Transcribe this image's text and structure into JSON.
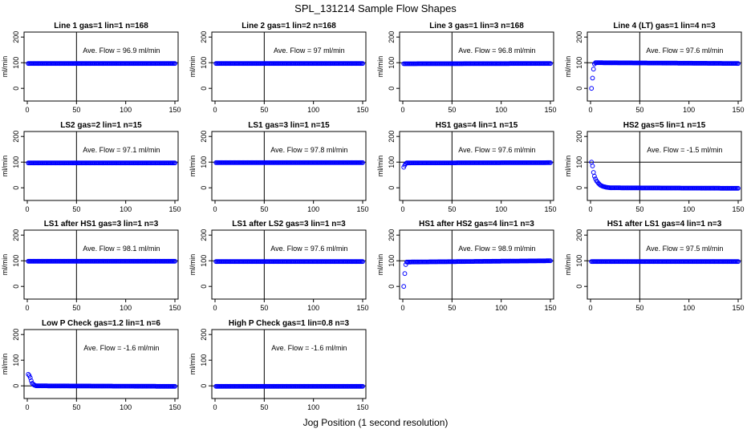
{
  "figure": {
    "title": "SPL_131214  Sample Flow Shapes",
    "xlabel": "Jog Position (1 second resolution)"
  },
  "chart_data": [
    {
      "type": "scatter",
      "title": "Line 1 gas=1 lin=1 n=168",
      "ylabel": "ml/min",
      "xlim": [
        0,
        150
      ],
      "ylim": [
        -40,
        210
      ],
      "xticks": [
        0,
        50,
        100,
        150
      ],
      "yticks": [
        0,
        100,
        200
      ],
      "hline": 100,
      "vline": 50,
      "annotation": "Ave. Flow =  96.9  ml/min",
      "series": [
        {
          "x": [
            1,
            150
          ],
          "y": [
            97,
            97
          ],
          "note_shape": "flat"
        }
      ]
    },
    {
      "type": "scatter",
      "title": "Line 2 gas=1 lin=2 n=168",
      "ylabel": "ml/min",
      "xlim": [
        0,
        150
      ],
      "ylim": [
        -40,
        210
      ],
      "xticks": [
        0,
        50,
        100,
        150
      ],
      "yticks": [
        0,
        100,
        200
      ],
      "hline": 100,
      "vline": 50,
      "annotation": "Ave. Flow =  97  ml/min",
      "series": [
        {
          "x": [
            1,
            150
          ],
          "y": [
            97,
            97
          ]
        }
      ]
    },
    {
      "type": "scatter",
      "title": "Line 3 gas=1 lin=3 n=168",
      "ylabel": "ml/min",
      "xlim": [
        0,
        150
      ],
      "ylim": [
        -40,
        210
      ],
      "xticks": [
        0,
        50,
        100,
        150
      ],
      "yticks": [
        0,
        100,
        200
      ],
      "hline": 100,
      "vline": 50,
      "annotation": "Ave. Flow =  96.8  ml/min",
      "series": [
        {
          "x": [
            1,
            150
          ],
          "y": [
            96,
            97
          ]
        }
      ]
    },
    {
      "type": "scatter",
      "title": "Line 4 (LT) gas=1 lin=4 n=3",
      "ylabel": "ml/min",
      "xlim": [
        0,
        150
      ],
      "ylim": [
        -40,
        210
      ],
      "xticks": [
        0,
        50,
        100,
        150
      ],
      "yticks": [
        0,
        100,
        200
      ],
      "hline": 100,
      "vline": 50,
      "annotation": "Ave. Flow =  97.6  ml/min",
      "series": [
        {
          "x": [
            1,
            2,
            3,
            4,
            5,
            150
          ],
          "y": [
            0,
            40,
            75,
            95,
            100,
            97
          ]
        }
      ]
    },
    {
      "type": "scatter",
      "title": "LS2 gas=2 lin=1 n=15",
      "ylabel": "ml/min",
      "xlim": [
        0,
        150
      ],
      "ylim": [
        -40,
        210
      ],
      "xticks": [
        0,
        50,
        100,
        150
      ],
      "yticks": [
        0,
        100,
        200
      ],
      "hline": 100,
      "vline": 50,
      "annotation": "Ave. Flow =  97.1  ml/min",
      "series": [
        {
          "x": [
            1,
            150
          ],
          "y": [
            97,
            97
          ]
        }
      ]
    },
    {
      "type": "scatter",
      "title": "LS1 gas=3 lin=1 n=15",
      "ylabel": "ml/min",
      "xlim": [
        0,
        150
      ],
      "ylim": [
        -40,
        210
      ],
      "xticks": [
        0,
        50,
        100,
        150
      ],
      "yticks": [
        0,
        100,
        200
      ],
      "hline": 100,
      "vline": 50,
      "annotation": "Ave. Flow =  97.8  ml/min",
      "series": [
        {
          "x": [
            1,
            150
          ],
          "y": [
            98,
            98
          ]
        }
      ]
    },
    {
      "type": "scatter",
      "title": "HS1 gas=4 lin=1 n=15",
      "ylabel": "ml/min",
      "xlim": [
        0,
        150
      ],
      "ylim": [
        -40,
        210
      ],
      "xticks": [
        0,
        50,
        100,
        150
      ],
      "yticks": [
        0,
        100,
        200
      ],
      "hline": 100,
      "vline": 50,
      "annotation": "Ave. Flow =  97.6  ml/min",
      "series": [
        {
          "x": [
            1,
            2,
            3,
            4,
            150
          ],
          "y": [
            80,
            88,
            94,
            97,
            98
          ]
        }
      ]
    },
    {
      "type": "scatter",
      "title": "HS2 gas=5 lin=1 n=15",
      "ylabel": "ml/min",
      "xlim": [
        0,
        150
      ],
      "ylim": [
        -40,
        210
      ],
      "xticks": [
        0,
        50,
        100,
        150
      ],
      "yticks": [
        0,
        100,
        200
      ],
      "hline": 100,
      "vline": 50,
      "annotation": "Ave. Flow =  -1.5  ml/min",
      "series": [
        {
          "x": [
            1,
            2,
            3,
            4,
            5,
            6,
            8,
            10,
            13,
            16,
            20,
            150
          ],
          "y": [
            100,
            85,
            60,
            45,
            35,
            27,
            18,
            10,
            5,
            2,
            0,
            -2
          ]
        }
      ]
    },
    {
      "type": "scatter",
      "title": "LS1 after HS1 gas=3 lin=1 n=3",
      "ylabel": "ml/min",
      "xlim": [
        0,
        150
      ],
      "ylim": [
        -40,
        210
      ],
      "xticks": [
        0,
        50,
        100,
        150
      ],
      "yticks": [
        0,
        100,
        200
      ],
      "hline": 100,
      "vline": 50,
      "annotation": "Ave. Flow =  98.1  ml/min",
      "series": [
        {
          "x": [
            1,
            150
          ],
          "y": [
            98,
            98
          ]
        }
      ]
    },
    {
      "type": "scatter",
      "title": "LS1 after LS2 gas=3 lin=1 n=3",
      "ylabel": "ml/min",
      "xlim": [
        0,
        150
      ],
      "ylim": [
        -40,
        210
      ],
      "xticks": [
        0,
        50,
        100,
        150
      ],
      "yticks": [
        0,
        100,
        200
      ],
      "hline": 100,
      "vline": 50,
      "annotation": "Ave. Flow =  97.6  ml/min",
      "series": [
        {
          "x": [
            1,
            150
          ],
          "y": [
            97,
            97
          ]
        }
      ]
    },
    {
      "type": "scatter",
      "title": "HS1 after HS2 gas=4 lin=1 n=3",
      "ylabel": "ml/min",
      "xlim": [
        0,
        150
      ],
      "ylim": [
        -40,
        210
      ],
      "xticks": [
        0,
        50,
        100,
        150
      ],
      "yticks": [
        0,
        100,
        200
      ],
      "hline": 100,
      "vline": 50,
      "annotation": "Ave. Flow =  98.9  ml/min",
      "series": [
        {
          "x": [
            1,
            2,
            3,
            4,
            150
          ],
          "y": [
            0,
            50,
            85,
            95,
            100
          ]
        }
      ]
    },
    {
      "type": "scatter",
      "title": "HS1 after LS1 gas=4 lin=1 n=3",
      "ylabel": "ml/min",
      "xlim": [
        0,
        150
      ],
      "ylim": [
        -40,
        210
      ],
      "xticks": [
        0,
        50,
        100,
        150
      ],
      "yticks": [
        0,
        100,
        200
      ],
      "hline": 100,
      "vline": 50,
      "annotation": "Ave. Flow =  97.5  ml/min",
      "series": [
        {
          "x": [
            1,
            150
          ],
          "y": [
            97,
            97
          ]
        }
      ]
    },
    {
      "type": "scatter",
      "title": "Low P Check gas=1.2 lin=1 n=6",
      "ylabel": "ml/min",
      "xlim": [
        0,
        150
      ],
      "ylim": [
        -40,
        210
      ],
      "xticks": [
        0,
        50,
        100,
        150
      ],
      "yticks": [
        0,
        100,
        200
      ],
      "hline": 0,
      "vline": 50,
      "annotation": "Ave. Flow =  -1.6  ml/min",
      "series": [
        {
          "x": [
            1,
            2,
            3,
            4,
            5,
            7,
            9,
            150
          ],
          "y": [
            45,
            40,
            32,
            20,
            10,
            3,
            0,
            -2
          ]
        }
      ]
    },
    {
      "type": "scatter",
      "title": "High P Check gas=1 lin=0.8 n=3",
      "ylabel": "ml/min",
      "xlim": [
        0,
        150
      ],
      "ylim": [
        -40,
        210
      ],
      "xticks": [
        0,
        50,
        100,
        150
      ],
      "yticks": [
        0,
        100,
        200
      ],
      "hline": 0,
      "vline": 50,
      "annotation": "Ave. Flow =  -1.6  ml/min",
      "series": [
        {
          "x": [
            1,
            150
          ],
          "y": [
            -2,
            -2
          ]
        }
      ]
    }
  ],
  "colors": {
    "points": "#0000ff",
    "axes": "#000000"
  }
}
